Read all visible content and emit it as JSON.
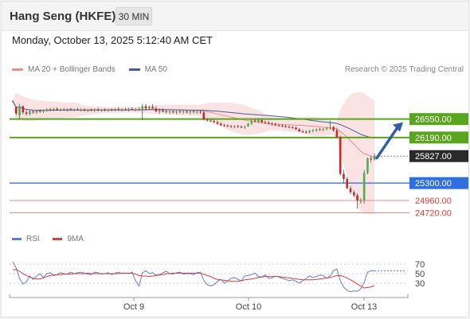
{
  "header": {
    "title": "Hang Seng (HKFE)",
    "timeframe": "30 MIN",
    "datetime": "Monday, October 13, 2025 5:12:40 AM CET"
  },
  "legend": {
    "bb_label": "MA 20 + Bollinger Bands",
    "ma50_label": "MA 50",
    "credit": "Research © 2025 Trading Central"
  },
  "rsi_legend": {
    "rsi_label": "RSI",
    "ma_label": "9MA"
  },
  "colors": {
    "bull": "#4caf50",
    "bear": "#c62828",
    "bb_fill": "#fbe3e3",
    "ma20": "#f28b8b",
    "ma50": "#3f5f9e",
    "support_line": "#4a7de8",
    "resistance_line": "#5aa51e",
    "target_line": "#f08a8a",
    "rsi": "#5b7fd9",
    "rsi_ma": "#e53935",
    "arrow": "#2e5fa8"
  },
  "chart_data": {
    "type": "candlestick",
    "title": "Hang Seng (HKFE)",
    "timeframe": "30 MIN",
    "x_labels": [
      "Oct 9",
      "Oct 10",
      "Oct 13"
    ],
    "ylim": [
      24650,
      26980
    ],
    "levels": [
      {
        "value": 26550,
        "label": "26550.00",
        "kind": "resistance"
      },
      {
        "value": 26190,
        "label": "26190.00",
        "kind": "resistance"
      },
      {
        "value": 25827,
        "label": "25827.00",
        "kind": "last"
      },
      {
        "value": 25300,
        "label": "25300.00",
        "kind": "pivot"
      },
      {
        "value": 24960,
        "label": "24960.00",
        "kind": "target"
      },
      {
        "value": 24720,
        "label": "24720.00",
        "kind": "target"
      }
    ],
    "arrow": {
      "from": 25820,
      "to": 26550,
      "direction": "up"
    },
    "candles": [
      [
        26900,
        26920,
        26880,
        26900
      ],
      [
        26780,
        26800,
        26620,
        26660
      ],
      [
        26620,
        26840,
        26560,
        26800
      ],
      [
        26800,
        26820,
        26640,
        26680
      ],
      [
        26680,
        26720,
        26620,
        26650
      ],
      [
        26650,
        26730,
        26620,
        26700
      ],
      [
        26700,
        26720,
        26650,
        26680
      ],
      [
        26680,
        26730,
        26650,
        26710
      ],
      [
        26710,
        26740,
        26670,
        26700
      ],
      [
        26700,
        26740,
        26670,
        26720
      ],
      [
        26720,
        26760,
        26690,
        26740
      ],
      [
        26740,
        26770,
        26700,
        26720
      ],
      [
        26720,
        26770,
        26700,
        26750
      ],
      [
        26750,
        26780,
        26710,
        26730
      ],
      [
        26730,
        26760,
        26700,
        26740
      ],
      [
        26740,
        26770,
        26710,
        26730
      ],
      [
        26730,
        26760,
        26700,
        26745
      ],
      [
        26745,
        26770,
        26710,
        26730
      ],
      [
        26730,
        26760,
        26700,
        26740
      ],
      [
        26740,
        26770,
        26710,
        26730
      ],
      [
        26730,
        26760,
        26700,
        26735
      ],
      [
        26735,
        26760,
        26700,
        26720
      ],
      [
        26720,
        26750,
        26690,
        26735
      ],
      [
        26735,
        26760,
        26700,
        26720
      ],
      [
        26720,
        26760,
        26690,
        26740
      ],
      [
        26740,
        26770,
        26700,
        26720
      ],
      [
        26720,
        26750,
        26690,
        26730
      ],
      [
        26730,
        26760,
        26700,
        26720
      ],
      [
        26720,
        26750,
        26690,
        26735
      ],
      [
        26735,
        26760,
        26700,
        26725
      ],
      [
        26725,
        26760,
        26700,
        26745
      ],
      [
        26745,
        26780,
        26710,
        26730
      ],
      [
        26730,
        26760,
        26700,
        26740
      ],
      [
        26740,
        26770,
        26710,
        26730
      ],
      [
        26730,
        26770,
        26700,
        26750
      ],
      [
        26750,
        26780,
        26720,
        26735
      ],
      [
        26735,
        26770,
        26700,
        26740
      ],
      [
        26740,
        26780,
        26710,
        26730
      ],
      [
        26730,
        26850,
        26530,
        26800
      ],
      [
        26800,
        26840,
        26720,
        26760
      ],
      [
        26760,
        26810,
        26730,
        26790
      ],
      [
        26790,
        26840,
        26750,
        26760
      ],
      [
        26760,
        26800,
        26680,
        26700
      ],
      [
        26700,
        26760,
        26650,
        26720
      ],
      [
        26720,
        26760,
        26680,
        26700
      ],
      [
        26700,
        26740,
        26660,
        26690
      ],
      [
        26690,
        26730,
        26650,
        26700
      ],
      [
        26700,
        26740,
        26660,
        26680
      ],
      [
        26680,
        26720,
        26640,
        26700
      ],
      [
        26700,
        26740,
        26660,
        26690
      ],
      [
        26690,
        26730,
        26650,
        26700
      ],
      [
        26700,
        26730,
        26660,
        26680
      ],
      [
        26680,
        26720,
        26640,
        26700
      ],
      [
        26700,
        26740,
        26660,
        26690
      ],
      [
        26690,
        26730,
        26650,
        26695
      ],
      [
        26695,
        26730,
        26650,
        26680
      ],
      [
        26680,
        26710,
        26520,
        26540
      ],
      [
        26540,
        26570,
        26500,
        26520
      ],
      [
        26520,
        26550,
        26490,
        26510
      ],
      [
        26510,
        26540,
        26470,
        26490
      ],
      [
        26490,
        26520,
        26440,
        26460
      ],
      [
        26460,
        26490,
        26420,
        26430
      ],
      [
        26430,
        26460,
        26400,
        26420
      ],
      [
        26420,
        26450,
        26390,
        26410
      ],
      [
        26410,
        26440,
        26380,
        26400
      ],
      [
        26400,
        26430,
        26370,
        26410
      ],
      [
        26410,
        26440,
        26380,
        26400
      ],
      [
        26400,
        26430,
        26370,
        26390
      ],
      [
        26390,
        26420,
        26360,
        26410
      ],
      [
        26410,
        26480,
        26400,
        26460
      ],
      [
        26460,
        26540,
        26440,
        26520
      ],
      [
        26520,
        26560,
        26480,
        26500
      ],
      [
        26500,
        26550,
        26470,
        26530
      ],
      [
        26530,
        26560,
        26470,
        26490
      ],
      [
        26490,
        26520,
        26450,
        26480
      ],
      [
        26480,
        26510,
        26440,
        26460
      ],
      [
        26460,
        26490,
        26420,
        26450
      ],
      [
        26450,
        26480,
        26410,
        26430
      ],
      [
        26430,
        26460,
        26400,
        26420
      ],
      [
        26420,
        26450,
        26390,
        26410
      ],
      [
        26410,
        26440,
        26380,
        26400
      ],
      [
        26400,
        26430,
        26370,
        26390
      ],
      [
        26390,
        26420,
        26360,
        26380
      ],
      [
        26380,
        26410,
        26340,
        26350
      ],
      [
        26350,
        26380,
        26300,
        26310
      ],
      [
        26310,
        26340,
        26280,
        26300
      ],
      [
        26300,
        26330,
        26270,
        26290
      ],
      [
        26290,
        26340,
        26270,
        26320
      ],
      [
        26320,
        26360,
        26290,
        26330
      ],
      [
        26330,
        26370,
        26300,
        26350
      ],
      [
        26350,
        26380,
        26320,
        26340
      ],
      [
        26340,
        26370,
        26310,
        26360
      ],
      [
        26360,
        26400,
        26330,
        26370
      ],
      [
        26370,
        26520,
        26340,
        26390
      ],
      [
        26390,
        26420,
        26300,
        26330
      ],
      [
        26330,
        26380,
        26180,
        26200
      ],
      [
        26200,
        26230,
        25450,
        25480
      ],
      [
        25480,
        25560,
        25300,
        25380
      ],
      [
        25380,
        25420,
        25180,
        25200
      ],
      [
        25200,
        25250,
        25080,
        25120
      ],
      [
        25120,
        25160,
        25020,
        25060
      ],
      [
        25060,
        25100,
        24800,
        24960
      ],
      [
        24960,
        25000,
        24900,
        24960
      ],
      [
        24960,
        25560,
        24900,
        25500
      ],
      [
        25500,
        25800,
        25470,
        25780
      ],
      [
        25780,
        25840,
        25700,
        25760
      ],
      [
        25760,
        25880,
        25740,
        25827
      ]
    ],
    "rsi": {
      "ylim": [
        0,
        100
      ],
      "ticks": [
        70,
        50,
        30
      ],
      "rsi_values": [
        75,
        62,
        40,
        28,
        33,
        45,
        38,
        45,
        50,
        42,
        50,
        52,
        46,
        48,
        52,
        50,
        49,
        53,
        50,
        52,
        53,
        51,
        49,
        48,
        53,
        52,
        49,
        50,
        52,
        48,
        51,
        53,
        50,
        51,
        50,
        53,
        35,
        24,
        52,
        56,
        50,
        52,
        47,
        48,
        52,
        55,
        50,
        49,
        52,
        53,
        49,
        50,
        50,
        48,
        52,
        53,
        36,
        27,
        24,
        27,
        34,
        38,
        30,
        35,
        40,
        42,
        38,
        35,
        45,
        46,
        48,
        51,
        44,
        43,
        47,
        40,
        41,
        45,
        43,
        40,
        38,
        35,
        37,
        34,
        30,
        35,
        40,
        45,
        42,
        44,
        47,
        46,
        40,
        45,
        56,
        60,
        35,
        22,
        15,
        12,
        14,
        13,
        18,
        32,
        53,
        56,
        56
      ],
      "ma_values": [
        58,
        59,
        55,
        50,
        46,
        43,
        40,
        39,
        39,
        41,
        44,
        46,
        47,
        48,
        48,
        49,
        49,
        49,
        50,
        50,
        50,
        50,
        51,
        50,
        50,
        50,
        50,
        50,
        50,
        50,
        50,
        50,
        51,
        51,
        51,
        51,
        49,
        46,
        45,
        45,
        44,
        45,
        46,
        47,
        48,
        50,
        50,
        51,
        51,
        51,
        51,
        51,
        51,
        51,
        51,
        51,
        49,
        46,
        44,
        40,
        38,
        37,
        36,
        35,
        34,
        34,
        34,
        35,
        37,
        38,
        39,
        40,
        42,
        43,
        44,
        44,
        44,
        44,
        44,
        43,
        42,
        41,
        40,
        39,
        38,
        37,
        37,
        37,
        37,
        38,
        39,
        40,
        41,
        42,
        44,
        46,
        46,
        44,
        41,
        37,
        33,
        28,
        24,
        20,
        21,
        22,
        25
      ]
    }
  }
}
